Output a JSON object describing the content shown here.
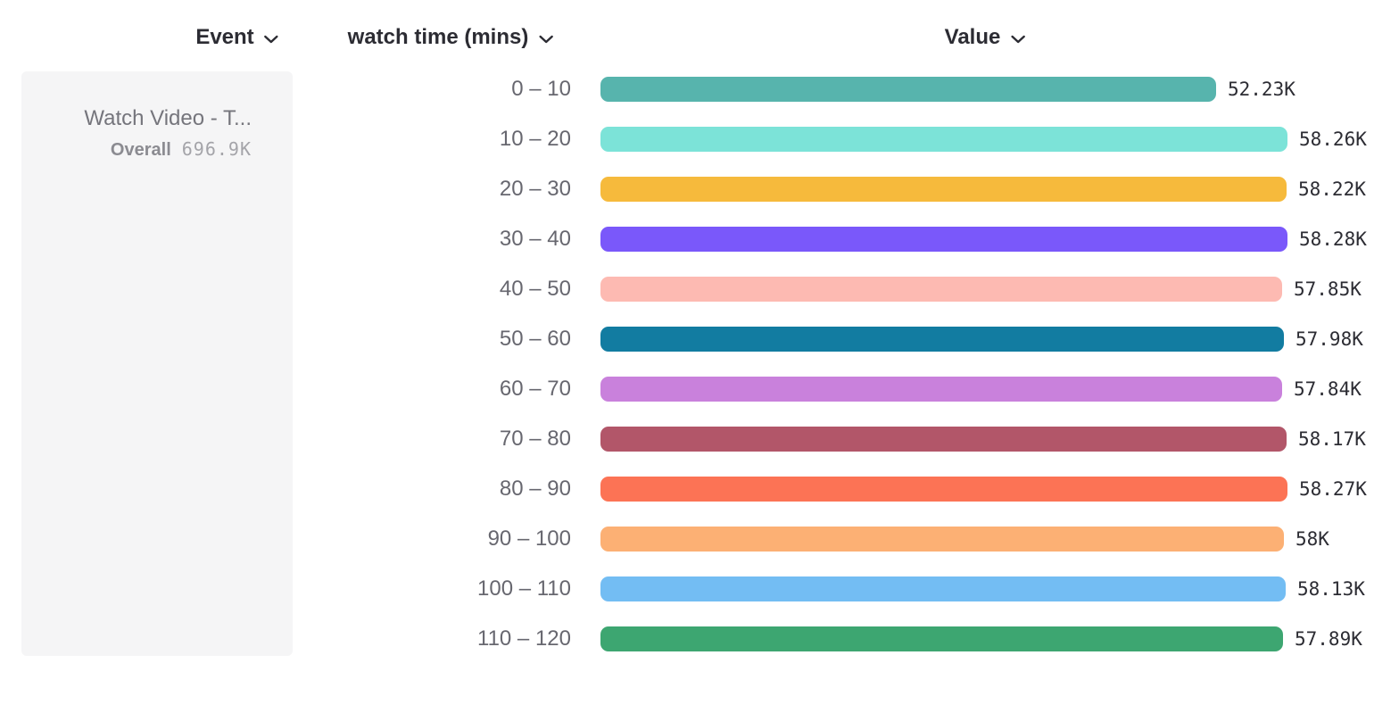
{
  "header": {
    "event_label": "Event",
    "breakdown_label": "watch time (mins)",
    "value_label": "Value"
  },
  "event_card": {
    "title": "Watch Video - T...",
    "overall_label": "Overall",
    "overall_value": "696.9K"
  },
  "chart_data": {
    "type": "bar",
    "orientation": "horizontal",
    "xlabel": "Value",
    "ylabel": "watch time (mins)",
    "xlim": [
      0,
      58280
    ],
    "categories": [
      "0 – 10",
      "10 – 20",
      "20 – 30",
      "30 – 40",
      "40 – 50",
      "50 – 60",
      "60 – 70",
      "70 – 80",
      "80 – 90",
      "90 – 100",
      "100 – 110",
      "110 – 120"
    ],
    "values": [
      52230,
      58260,
      58220,
      58280,
      57850,
      57980,
      57840,
      58170,
      58270,
      58000,
      58130,
      57890
    ],
    "value_labels": [
      "52.23K",
      "58.26K",
      "58.22K",
      "58.28K",
      "57.85K",
      "57.98K",
      "57.84K",
      "58.17K",
      "58.27K",
      "58K",
      "58.13K",
      "57.89K"
    ],
    "colors": [
      "#57b4ad",
      "#7ce3d8",
      "#f6ba3c",
      "#7a58fa",
      "#fdbab2",
      "#127ca1",
      "#c981dc",
      "#b25669",
      "#fc7355",
      "#fcb074",
      "#73bdf3",
      "#3da671"
    ]
  }
}
